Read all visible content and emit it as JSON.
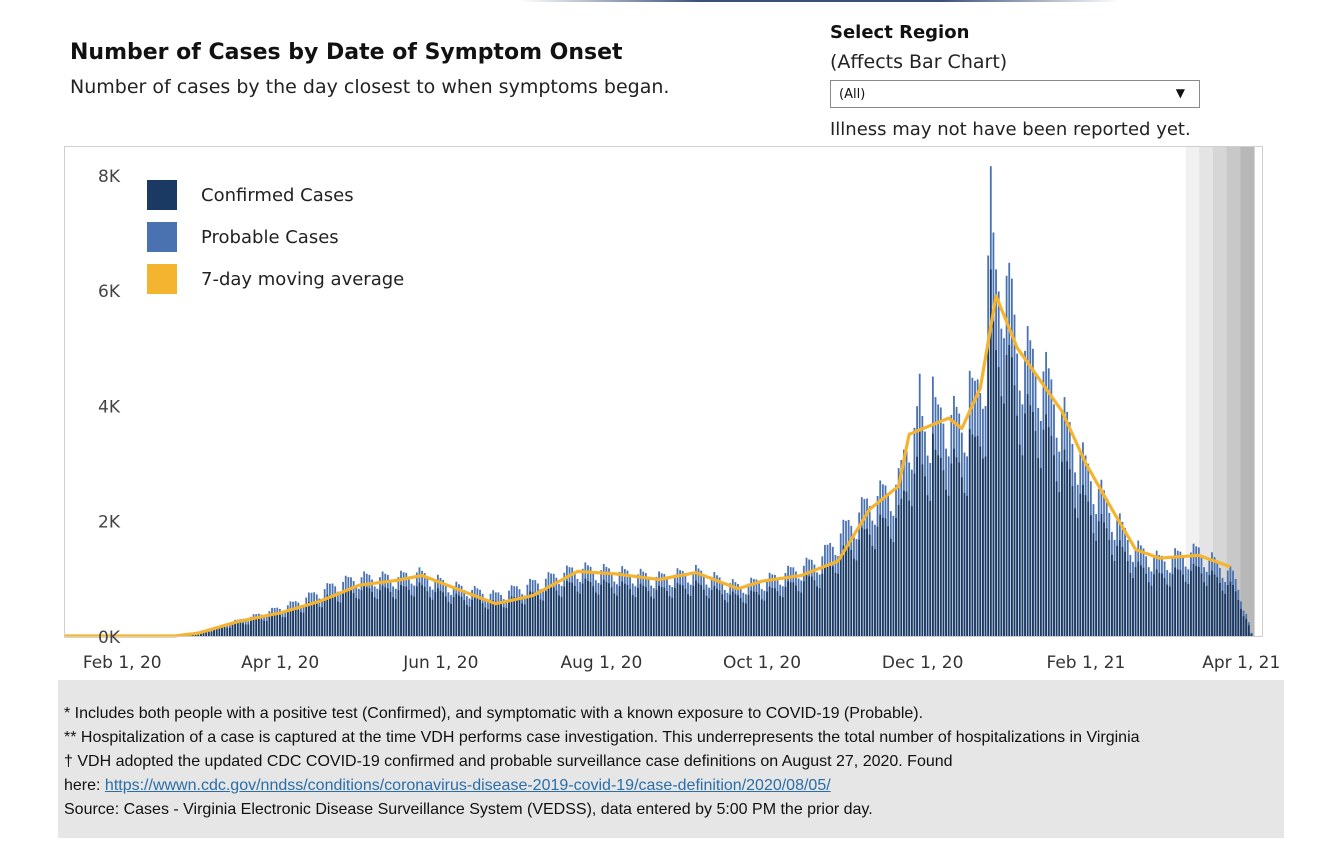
{
  "header": {
    "title": "Number of Cases by Date of Symptom Onset",
    "subtitle": "Number of cases by the day closest to when symptoms began."
  },
  "region_selector": {
    "label": "Select Region",
    "sublabel": "(Affects Bar Chart)",
    "selected": "(All)",
    "caret_icon": "caret-down-icon"
  },
  "note": "Illness may not have been reported yet.",
  "colors": {
    "confirmed": "#1b3a63",
    "probable": "#4a72b0",
    "moving_average": "#f4b430",
    "shading": [
      "#f1f1f1",
      "#e4e4e4",
      "#d6d6d6",
      "#c8c8c8",
      "#b8b8b8"
    ]
  },
  "chart_data": {
    "type": "bar",
    "title": "Number of Cases by Date of Symptom Onset",
    "x_tick_labels": [
      "Feb 1, 20",
      "Apr 1, 20",
      "Jun 1, 20",
      "Aug 1, 20",
      "Oct 1, 20",
      "Dec 1, 20",
      "Feb 1, 21",
      "Apr 1, 21"
    ],
    "y_tick_labels": [
      "0K",
      "2K",
      "4K",
      "6K",
      "8K"
    ],
    "ylim": [
      0,
      8500
    ],
    "xlim": [
      "2020-01-19",
      "2021-04-18"
    ],
    "legend": [
      "Confirmed Cases",
      "Probable Cases",
      "7-day moving average"
    ],
    "legend_position": "top-left",
    "stacked": true,
    "grid": false,
    "series": [
      {
        "name": "Confirmed Cases",
        "kind": "bar",
        "share_of_total": 0.78
      },
      {
        "name": "Probable Cases",
        "kind": "bar",
        "stacked_on": "Confirmed Cases"
      },
      {
        "name": "7-day moving average",
        "kind": "line"
      }
    ],
    "daily_total_anchors": [
      [
        "2020-01-20",
        0
      ],
      [
        "2020-02-28",
        0
      ],
      [
        "2020-03-10",
        30
      ],
      [
        "2020-03-20",
        200
      ],
      [
        "2020-04-01",
        350
      ],
      [
        "2020-04-15",
        550
      ],
      [
        "2020-05-01",
        880
      ],
      [
        "2020-05-10",
        1000
      ],
      [
        "2020-05-25",
        1000
      ],
      [
        "2020-06-01",
        1080
      ],
      [
        "2020-06-15",
        850
      ],
      [
        "2020-07-01",
        700
      ],
      [
        "2020-07-15",
        900
      ],
      [
        "2020-08-01",
        1150
      ],
      [
        "2020-08-15",
        1100
      ],
      [
        "2020-09-01",
        1000
      ],
      [
        "2020-09-15",
        1100
      ],
      [
        "2020-10-01",
        850
      ],
      [
        "2020-10-15",
        1000
      ],
      [
        "2020-11-01",
        1300
      ],
      [
        "2020-11-10",
        1800
      ],
      [
        "2020-11-20",
        2300
      ],
      [
        "2020-12-01",
        2600
      ],
      [
        "2020-12-05",
        3500
      ],
      [
        "2020-12-20",
        3800
      ],
      [
        "2020-12-25",
        3600
      ],
      [
        "2021-01-01",
        4300
      ],
      [
        "2021-01-07",
        6000
      ],
      [
        "2021-01-10",
        6300
      ],
      [
        "2021-01-15",
        5000
      ],
      [
        "2021-01-25",
        4500
      ],
      [
        "2021-02-01",
        3800
      ],
      [
        "2021-02-10",
        2900
      ],
      [
        "2021-02-20",
        2100
      ],
      [
        "2021-03-01",
        1500
      ],
      [
        "2021-03-10",
        1300
      ],
      [
        "2021-03-25",
        1450
      ],
      [
        "2021-04-07",
        1050
      ],
      [
        "2021-04-10",
        700
      ],
      [
        "2021-04-14",
        50
      ]
    ],
    "spike_days": [
      [
        "2020-12-09",
        4550
      ],
      [
        "2020-12-14",
        4500
      ],
      [
        "2020-12-28",
        4600
      ],
      [
        "2021-01-04",
        6600
      ],
      [
        "2021-01-05",
        8150
      ],
      [
        "2021-01-06",
        7000
      ],
      [
        "2021-01-11",
        6250
      ],
      [
        "2021-01-13",
        6200
      ]
    ],
    "moving_average_anchors": [
      [
        "2020-01-20",
        0
      ],
      [
        "2020-03-01",
        0
      ],
      [
        "2020-03-10",
        50
      ],
      [
        "2020-03-25",
        250
      ],
      [
        "2020-04-10",
        400
      ],
      [
        "2020-04-25",
        600
      ],
      [
        "2020-05-10",
        880
      ],
      [
        "2020-05-25",
        970
      ],
      [
        "2020-06-03",
        1050
      ],
      [
        "2020-06-20",
        750
      ],
      [
        "2020-07-01",
        560
      ],
      [
        "2020-07-15",
        700
      ],
      [
        "2020-08-01",
        1120
      ],
      [
        "2020-08-15",
        1080
      ],
      [
        "2020-09-01",
        980
      ],
      [
        "2020-09-15",
        1100
      ],
      [
        "2020-10-01",
        820
      ],
      [
        "2020-10-10",
        950
      ],
      [
        "2020-10-25",
        1050
      ],
      [
        "2020-11-08",
        1300
      ],
      [
        "2020-11-20",
        2200
      ],
      [
        "2020-12-01",
        2600
      ],
      [
        "2020-12-05",
        3500
      ],
      [
        "2020-12-20",
        3780
      ],
      [
        "2020-12-25",
        3600
      ],
      [
        "2021-01-01",
        4300
      ],
      [
        "2021-01-07",
        5900
      ],
      [
        "2021-01-15",
        5000
      ],
      [
        "2021-02-01",
        3900
      ],
      [
        "2021-02-10",
        3000
      ],
      [
        "2021-02-20",
        2200
      ],
      [
        "2021-03-01",
        1500
      ],
      [
        "2021-03-10",
        1350
      ],
      [
        "2021-03-25",
        1400
      ],
      [
        "2021-04-06",
        1200
      ]
    ],
    "shaded_period": {
      "start": "2021-03-20",
      "end": "2021-04-15",
      "meaning": "Illness may not have been reported yet."
    }
  },
  "footnotes": {
    "line1": "* Includes both people with a positive test (Confirmed), and symptomatic with a known exposure to COVID-19 (Probable).",
    "line2": "** Hospitalization of a case is captured at the time VDH performs case investigation. This underrepresents the total number of hospitalizations in Virginia",
    "line3": "† VDH adopted the updated CDC COVID-19 confirmed and probable surveillance case definitions on August 27, 2020. Found",
    "line4_prefix": "here: ",
    "link": "https://wwwn.cdc.gov/nndss/conditions/coronavirus-disease-2019-covid-19/case-definition/2020/08/05/",
    "line5": "Source:  Cases - Virginia Electronic Disease Surveillance System (VEDSS), data entered by 5:00 PM the prior day."
  }
}
